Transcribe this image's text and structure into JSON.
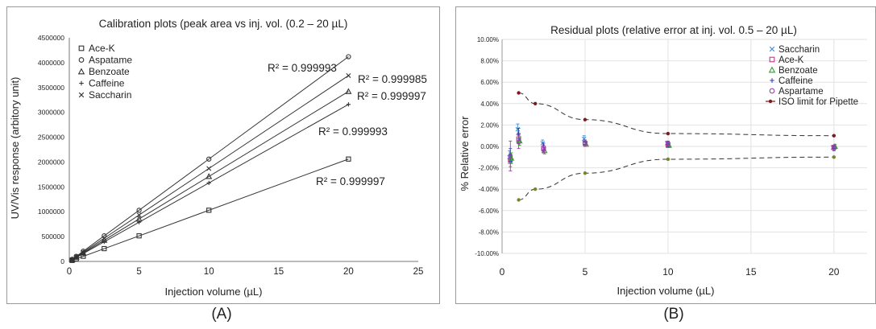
{
  "captions": {
    "a": "(A)",
    "b": "(B)"
  },
  "chart_data": [
    {
      "type": "line",
      "title": "Calibration plots (peak area vs inj. vol. (0.2 – 20 µL)",
      "xlabel": "Injection volume (µL)",
      "ylabel": "UV/Vis response (arbitory unit)",
      "xlim": [
        0,
        25
      ],
      "ylim": [
        0,
        4500000
      ],
      "xticks": [
        "0",
        "5",
        "10",
        "15",
        "20",
        "25"
      ],
      "yticks": [
        "0",
        "500000",
        "1000000",
        "1500000",
        "2000000",
        "2500000",
        "3000000",
        "3500000",
        "4000000",
        "4500000"
      ],
      "legend_position": "top-left",
      "x": [
        0.2,
        0.5,
        1,
        2.5,
        5,
        10,
        20
      ],
      "series": [
        {
          "name": "Ace-K",
          "marker": "square",
          "values": [
            20000,
            52000,
            104000,
            258000,
            515000,
            1030000,
            2060000
          ],
          "r2": "R² = 0.999997"
        },
        {
          "name": "Aspatame",
          "marker": "circle",
          "values": [
            41000,
            103000,
            206000,
            515000,
            1030000,
            2060000,
            4120000
          ],
          "r2": "R² = 0.999993"
        },
        {
          "name": "Benzoate",
          "marker": "triangle",
          "values": [
            34000,
            85000,
            171000,
            428000,
            855000,
            1710000,
            3420000
          ],
          "r2": "R² = 0.999997"
        },
        {
          "name": "Caffeine",
          "marker": "plus",
          "values": [
            31000,
            79000,
            158000,
            395000,
            790000,
            1580000,
            3160000
          ],
          "r2": "R² = 0.999993"
        },
        {
          "name": "Saccharin",
          "marker": "x",
          "values": [
            37000,
            93000,
            187000,
            467000,
            935000,
            1870000,
            3740000
          ],
          "r2": "R² = 0.999985"
        }
      ]
    },
    {
      "type": "scatter",
      "title": "Residual plots (relative error at inj. vol. 0.5 – 20 µL)",
      "xlabel": "Injection volume (µL)",
      "ylabel": "% Relative error",
      "xlim": [
        0,
        22
      ],
      "ylim": [
        -10,
        10
      ],
      "xticks": [
        "0",
        "5",
        "10",
        "15",
        "20"
      ],
      "yticks": [
        "-10.00%",
        "-8.00%",
        "-6.00%",
        "-4.00%",
        "-2.00%",
        "0.00%",
        "2.00%",
        "4.00%",
        "6.00%",
        "8.00%",
        "10.00%"
      ],
      "legend_position": "top-right",
      "x": [
        0.5,
        1,
        2.5,
        5,
        10,
        20
      ],
      "series": [
        {
          "name": "Saccharin",
          "marker": "x",
          "color": "#4a8fd6",
          "values": [
            -1.0,
            1.6,
            0.3,
            0.7,
            0.3,
            -0.1
          ],
          "err": [
            0.6,
            0.5,
            0.3,
            0.3,
            0.2,
            0.2
          ]
        },
        {
          "name": "Ace-K",
          "marker": "square",
          "color": "#c0398f",
          "values": [
            -1.3,
            0.7,
            -0.2,
            0.3,
            0.1,
            -0.1
          ],
          "err": [
            0.6,
            0.4,
            0.3,
            0.2,
            0.2,
            0.2
          ]
        },
        {
          "name": "Benzoate",
          "marker": "triangle",
          "color": "#2ca02c",
          "values": [
            -1.1,
            0.5,
            -0.4,
            0.2,
            0.1,
            0.0
          ],
          "err": [
            0.5,
            0.4,
            0.3,
            0.2,
            0.2,
            0.2
          ]
        },
        {
          "name": "Caffeine",
          "marker": "plus",
          "color": "#3a3ab8",
          "values": [
            -0.8,
            1.2,
            0.0,
            0.4,
            0.2,
            -0.2
          ],
          "err": [
            0.6,
            0.5,
            0.3,
            0.2,
            0.2,
            0.2
          ]
        },
        {
          "name": "Aspartame",
          "marker": "circle",
          "color": "#9b3fa8",
          "values": [
            -0.9,
            0.4,
            -0.3,
            0.3,
            0.3,
            -0.1
          ],
          "err": [
            1.4,
            0.6,
            0.3,
            0.3,
            0.2,
            0.2
          ]
        }
      ],
      "limit": {
        "name": "ISO limit for Pipette",
        "color": "#7b1c1c",
        "x": [
          1,
          2,
          5,
          10,
          20
        ],
        "upper": [
          5.0,
          4.0,
          2.5,
          1.2,
          1.0
        ],
        "lower": [
          -5.0,
          -4.0,
          -2.5,
          -1.2,
          -1.0
        ]
      }
    }
  ]
}
